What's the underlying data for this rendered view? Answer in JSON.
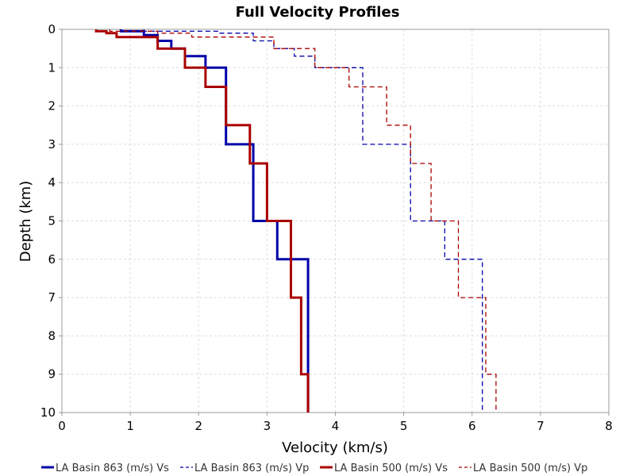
{
  "chart_data": {
    "type": "line",
    "title": "Full Velocity Profiles",
    "xlabel": "Velocity (km/s)",
    "ylabel": "Depth (km)",
    "xlim": [
      0,
      8
    ],
    "ylim": [
      0,
      10
    ],
    "y_inverted": true,
    "xticks": [
      "0",
      "1",
      "2",
      "3",
      "4",
      "5",
      "6",
      "7",
      "8"
    ],
    "yticks": [
      "0",
      "1",
      "2",
      "3",
      "4",
      "5",
      "6",
      "7",
      "8",
      "9",
      "10"
    ],
    "grid": true,
    "legend_position": "bottom",
    "series": [
      {
        "name": "LA Basin 863 (m/s) Vs",
        "color": "#0000aa",
        "style": "solid",
        "velocity": [
          0.863,
          1.2,
          1.4,
          1.6,
          1.8,
          2.1,
          2.4,
          2.8,
          3.15,
          3.6
        ],
        "depth_top": [
          0,
          0.05,
          0.15,
          0.3,
          0.5,
          0.7,
          1.0,
          3.0,
          5.0,
          6.0,
          10.0
        ]
      },
      {
        "name": "LA Basin 863 (m/s) Vp",
        "color": "#0000aa",
        "style": "dashed",
        "velocity": [
          1.2,
          2.3,
          2.8,
          3.1,
          3.4,
          3.7,
          4.4,
          5.1,
          5.6,
          6.15
        ],
        "depth_top": [
          0,
          0.05,
          0.1,
          0.3,
          0.5,
          0.7,
          1.0,
          3.0,
          5.0,
          6.0,
          10.0
        ]
      },
      {
        "name": "LA Basin 500 (m/s) Vs",
        "color": "#aa0000",
        "style": "solid",
        "velocity": [
          0.5,
          0.65,
          0.8,
          1.4,
          1.8,
          2.1,
          2.4,
          2.75,
          3.0,
          3.35,
          3.5,
          3.6
        ],
        "depth_top": [
          0,
          0.05,
          0.1,
          0.2,
          0.5,
          1.0,
          1.5,
          2.5,
          3.5,
          5.0,
          7.0,
          9.0,
          10.0
        ]
      },
      {
        "name": "LA Basin 500 (m/s) Vp",
        "color": "#aa0000",
        "style": "dashed",
        "velocity": [
          0.7,
          1.4,
          1.9,
          3.1,
          3.7,
          4.2,
          4.75,
          5.1,
          5.4,
          5.8,
          6.2,
          6.35
        ],
        "depth_top": [
          0,
          0.05,
          0.1,
          0.2,
          0.5,
          1.0,
          1.5,
          2.5,
          3.5,
          5.0,
          7.0,
          9.0,
          10.0
        ]
      }
    ]
  }
}
